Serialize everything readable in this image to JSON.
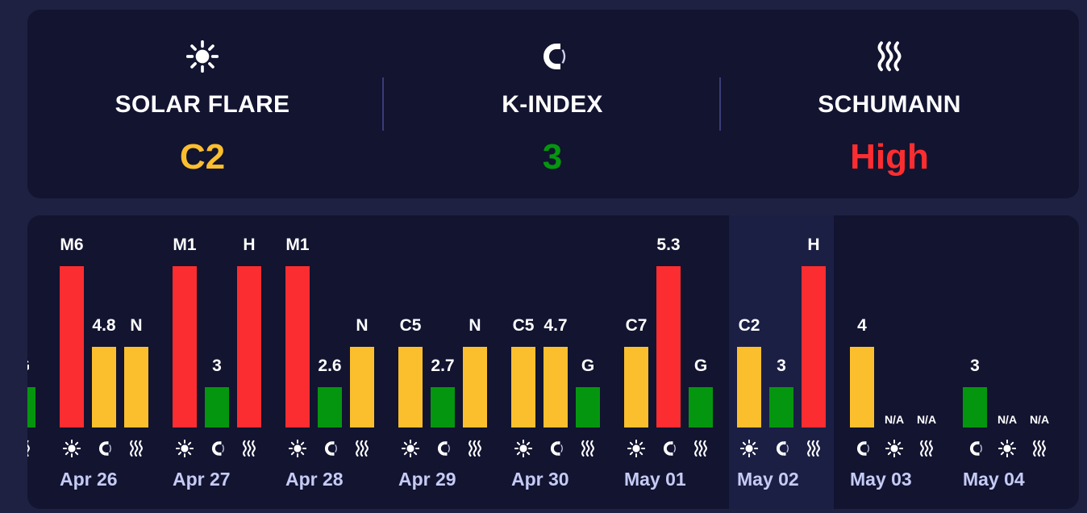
{
  "colors": {
    "yellow": "#fbbf2e",
    "green": "#05960f",
    "red": "#fc2d30"
  },
  "summary": {
    "metrics": [
      {
        "icon": "sun-icon",
        "label": "SOLAR FLARE",
        "value": "C2",
        "color": "#fbbf2e"
      },
      {
        "icon": "magnet-icon",
        "label": "K-INDEX",
        "value": "3",
        "color": "#05960f"
      },
      {
        "icon": "waves-icon",
        "label": "SCHUMANN",
        "value": "High",
        "color": "#fc2d30"
      }
    ]
  },
  "history": {
    "selected_day": "May 02",
    "partial_left_label": "G",
    "days": [
      {
        "date": "Apr 26",
        "bars": [
          {
            "icon": "sun-icon",
            "label": "M6",
            "level": 1.0,
            "color": "#fc2d30"
          },
          {
            "icon": "magnet-icon",
            "label": "4.8",
            "level": 0.5,
            "color": "#fbbf2e"
          },
          {
            "icon": "waves-icon",
            "label": "N",
            "level": 0.5,
            "color": "#fbbf2e"
          }
        ]
      },
      {
        "date": "Apr 27",
        "bars": [
          {
            "icon": "sun-icon",
            "label": "M1",
            "level": 1.0,
            "color": "#fc2d30"
          },
          {
            "icon": "magnet-icon",
            "label": "3",
            "level": 0.25,
            "color": "#05960f"
          },
          {
            "icon": "waves-icon",
            "label": "H",
            "level": 1.0,
            "color": "#fc2d30"
          }
        ]
      },
      {
        "date": "Apr 28",
        "bars": [
          {
            "icon": "sun-icon",
            "label": "M1",
            "level": 1.0,
            "color": "#fc2d30"
          },
          {
            "icon": "magnet-icon",
            "label": "2.6",
            "level": 0.25,
            "color": "#05960f"
          },
          {
            "icon": "waves-icon",
            "label": "N",
            "level": 0.5,
            "color": "#fbbf2e"
          }
        ]
      },
      {
        "date": "Apr 29",
        "bars": [
          {
            "icon": "sun-icon",
            "label": "C5",
            "level": 0.5,
            "color": "#fbbf2e"
          },
          {
            "icon": "magnet-icon",
            "label": "2.7",
            "level": 0.25,
            "color": "#05960f"
          },
          {
            "icon": "waves-icon",
            "label": "N",
            "level": 0.5,
            "color": "#fbbf2e"
          }
        ]
      },
      {
        "date": "Apr 30",
        "bars": [
          {
            "icon": "sun-icon",
            "label": "C5",
            "level": 0.5,
            "color": "#fbbf2e"
          },
          {
            "icon": "magnet-icon",
            "label": "4.7",
            "level": 0.5,
            "color": "#fbbf2e"
          },
          {
            "icon": "waves-icon",
            "label": "G",
            "level": 0.25,
            "color": "#05960f"
          }
        ]
      },
      {
        "date": "May 01",
        "bars": [
          {
            "icon": "sun-icon",
            "label": "C7",
            "level": 0.5,
            "color": "#fbbf2e"
          },
          {
            "icon": "magnet-icon",
            "label": "5.3",
            "level": 1.0,
            "color": "#fc2d30"
          },
          {
            "icon": "waves-icon",
            "label": "G",
            "level": 0.25,
            "color": "#05960f"
          }
        ]
      },
      {
        "date": "May 02",
        "bars": [
          {
            "icon": "sun-icon",
            "label": "C2",
            "level": 0.5,
            "color": "#fbbf2e"
          },
          {
            "icon": "magnet-icon",
            "label": "3",
            "level": 0.25,
            "color": "#05960f"
          },
          {
            "icon": "waves-icon",
            "label": "H",
            "level": 1.0,
            "color": "#fc2d30"
          }
        ]
      },
      {
        "date": "May 03",
        "bars": [
          {
            "icon": "magnet-icon",
            "label": "4",
            "level": 0.5,
            "color": "#fbbf2e"
          },
          {
            "icon": "sun-icon",
            "label": "N/A",
            "level": 0,
            "color": ""
          },
          {
            "icon": "waves-icon",
            "label": "N/A",
            "level": 0,
            "color": ""
          }
        ]
      },
      {
        "date": "May 04",
        "bars": [
          {
            "icon": "magnet-icon",
            "label": "3",
            "level": 0.25,
            "color": "#05960f"
          },
          {
            "icon": "sun-icon",
            "label": "N/A",
            "level": 0,
            "color": ""
          },
          {
            "icon": "waves-icon",
            "label": "N/A",
            "level": 0,
            "color": ""
          }
        ]
      }
    ]
  }
}
